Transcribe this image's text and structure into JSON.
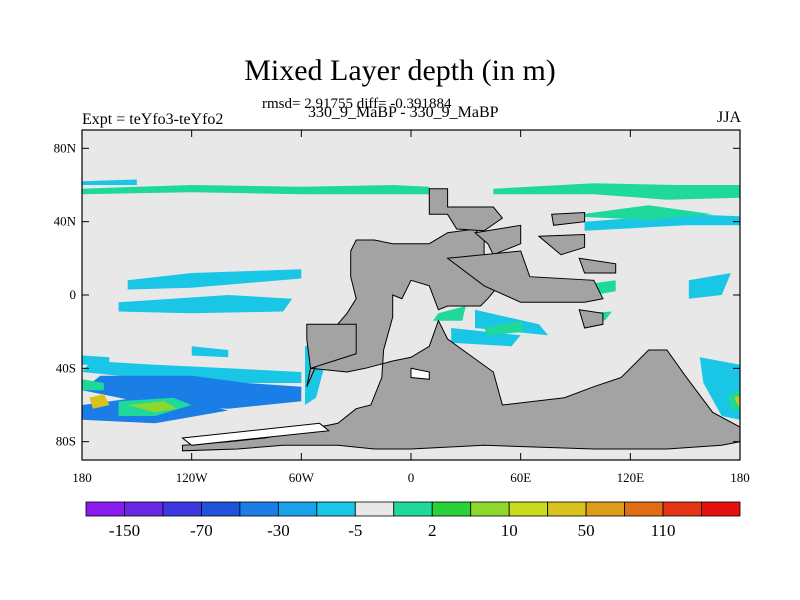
{
  "chart_data": {
    "type": "heatmap",
    "title": "Mixed Layer depth (in m)",
    "subtitle": "rmsd= 2.91755 diff= -0.391884",
    "left_label": "Expt = teYfo3-teYfo2",
    "center_label": "330_9_MaBP - 330_9_MaBP",
    "right_label": "JJA",
    "x_ticks": [
      "180",
      "120W",
      "60W",
      "0",
      "60E",
      "120E",
      "180"
    ],
    "y_ticks": [
      "80N",
      "40N",
      "0",
      "40S",
      "80S"
    ],
    "xlim": [
      -180,
      180
    ],
    "ylim": [
      -90,
      90
    ],
    "colorbar": {
      "labels": [
        "-150",
        "-70",
        "-30",
        "-5",
        "2",
        "10",
        "50",
        "110"
      ],
      "colors": [
        "#8a1cf0",
        "#6a28e6",
        "#3c37de",
        "#1f54da",
        "#1a7ee6",
        "#1aa2e8",
        "#19c6e6",
        "#e8e8e8",
        "#1ed99a",
        "#2ad23a",
        "#8ed82e",
        "#c8dc1e",
        "#d8c21e",
        "#dc9e1a",
        "#e06c14",
        "#e43414",
        "#e61010"
      ]
    },
    "colors": {
      "land": "#a3a3a3",
      "background": "#e8e8e8",
      "cyan": "#19c6e6",
      "blue": "#1a7ee6",
      "green": "#1ed99a",
      "lime": "#8ed82e",
      "yellow": "#d8c21e",
      "white": "#ffffff"
    }
  }
}
